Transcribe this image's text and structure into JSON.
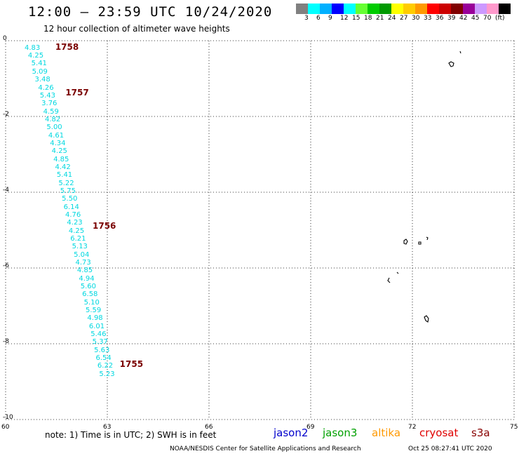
{
  "title": "12:00 – 23:59 UTC 10/24/2020",
  "subtitle": "12 hour collection of altimeter wave heights",
  "legend": {
    "colors": [
      "#808080",
      "#00ffff",
      "#00b0ff",
      "#0000ff",
      "#00ffff",
      "#66ff33",
      "#00cc00",
      "#009900",
      "#ffff00",
      "#ffcc00",
      "#ff9900",
      "#ff0000",
      "#cc0000",
      "#800000",
      "#990099",
      "#cc99ff",
      "#ff99cc",
      "#000000"
    ],
    "labels": [
      "3",
      "6",
      "9",
      "12",
      "15",
      "18",
      "21",
      "24",
      "27",
      "30",
      "33",
      "36",
      "39",
      "42",
      "45",
      "70",
      "(ft)"
    ]
  },
  "axes": {
    "x_ticks": [
      "60",
      "63",
      "66",
      "69",
      "72",
      "75"
    ],
    "y_ticks": [
      "0",
      "-2",
      "-4",
      "-6",
      "-8",
      "-10"
    ]
  },
  "passes": [
    {
      "label": "1758",
      "lon": 61.3,
      "lat": -0.18
    },
    {
      "label": "1757",
      "lon": 61.6,
      "lat": -1.38
    },
    {
      "label": "1756",
      "lon": 62.4,
      "lat": -4.9
    },
    {
      "label": "1755",
      "lon": 63.2,
      "lat": -8.55
    }
  ],
  "wave_heights": [
    {
      "v": "4.83",
      "lon": 60.6,
      "lat": -0.2
    },
    {
      "v": "4.25",
      "lon": 60.7,
      "lat": -0.41
    },
    {
      "v": "5.41",
      "lon": 60.8,
      "lat": -0.62
    },
    {
      "v": "5.09",
      "lon": 60.82,
      "lat": -0.83
    },
    {
      "v": "3.48",
      "lon": 60.9,
      "lat": -1.04
    },
    {
      "v": "4.26",
      "lon": 61.0,
      "lat": -1.25
    },
    {
      "v": "5.43",
      "lon": 61.05,
      "lat": -1.46
    },
    {
      "v": "3.76",
      "lon": 61.1,
      "lat": -1.67
    },
    {
      "v": "4.59",
      "lon": 61.15,
      "lat": -1.88
    },
    {
      "v": "4.82",
      "lon": 61.2,
      "lat": -2.09
    },
    {
      "v": "5.00",
      "lon": 61.25,
      "lat": -2.3
    },
    {
      "v": "4.61",
      "lon": 61.3,
      "lat": -2.51
    },
    {
      "v": "4.34",
      "lon": 61.35,
      "lat": -2.72
    },
    {
      "v": "4.25",
      "lon": 61.4,
      "lat": -2.93
    },
    {
      "v": "4.85",
      "lon": 61.45,
      "lat": -3.14
    },
    {
      "v": "4.42",
      "lon": 61.5,
      "lat": -3.35
    },
    {
      "v": "5.41",
      "lon": 61.55,
      "lat": -3.56
    },
    {
      "v": "5.22",
      "lon": 61.6,
      "lat": -3.77
    },
    {
      "v": "5.75",
      "lon": 61.65,
      "lat": -3.98
    },
    {
      "v": "5.50",
      "lon": 61.7,
      "lat": -4.19
    },
    {
      "v": "6.14",
      "lon": 61.75,
      "lat": -4.4
    },
    {
      "v": "4.76",
      "lon": 61.8,
      "lat": -4.61
    },
    {
      "v": "4.23",
      "lon": 61.85,
      "lat": -4.82
    },
    {
      "v": "4.25",
      "lon": 61.9,
      "lat": -5.03
    },
    {
      "v": "6.21",
      "lon": 61.95,
      "lat": -5.24
    },
    {
      "v": "5.13",
      "lon": 62.0,
      "lat": -5.45
    },
    {
      "v": "5.04",
      "lon": 62.05,
      "lat": -5.66
    },
    {
      "v": "4.73",
      "lon": 62.1,
      "lat": -5.87
    },
    {
      "v": "4.85",
      "lon": 62.15,
      "lat": -6.08
    },
    {
      "v": "4.94",
      "lon": 62.2,
      "lat": -6.29
    },
    {
      "v": "5.60",
      "lon": 62.25,
      "lat": -6.5
    },
    {
      "v": "6.58",
      "lon": 62.3,
      "lat": -6.71
    },
    {
      "v": "5.10",
      "lon": 62.35,
      "lat": -6.92
    },
    {
      "v": "5.59",
      "lon": 62.4,
      "lat": -7.13
    },
    {
      "v": "4.98",
      "lon": 62.45,
      "lat": -7.34
    },
    {
      "v": "6.01",
      "lon": 62.5,
      "lat": -7.55
    },
    {
      "v": "5.46",
      "lon": 62.55,
      "lat": -7.76
    },
    {
      "v": "5.37",
      "lon": 62.6,
      "lat": -7.97
    },
    {
      "v": "5.63",
      "lon": 62.65,
      "lat": -8.18
    },
    {
      "v": "6.54",
      "lon": 62.7,
      "lat": -8.39
    },
    {
      "v": "6.22",
      "lon": 62.75,
      "lat": -8.6
    },
    {
      "v": "5.23",
      "lon": 62.8,
      "lat": -8.81
    }
  ],
  "note": "note:  1) Time is in UTC;  2) SWH is in feet",
  "satellites": [
    {
      "name": "jason2",
      "color": "#0000cc"
    },
    {
      "name": "jason3",
      "color": "#00a000"
    },
    {
      "name": "altika",
      "color": "#ff9900"
    },
    {
      "name": "cryosat",
      "color": "#e00000"
    },
    {
      "name": "s3a",
      "color": "#880000"
    }
  ],
  "credit": "NOAA/NESDIS Center for Satellite Applications and Research",
  "timestamp": "Oct 25 08:27:41 UTC 2020"
}
